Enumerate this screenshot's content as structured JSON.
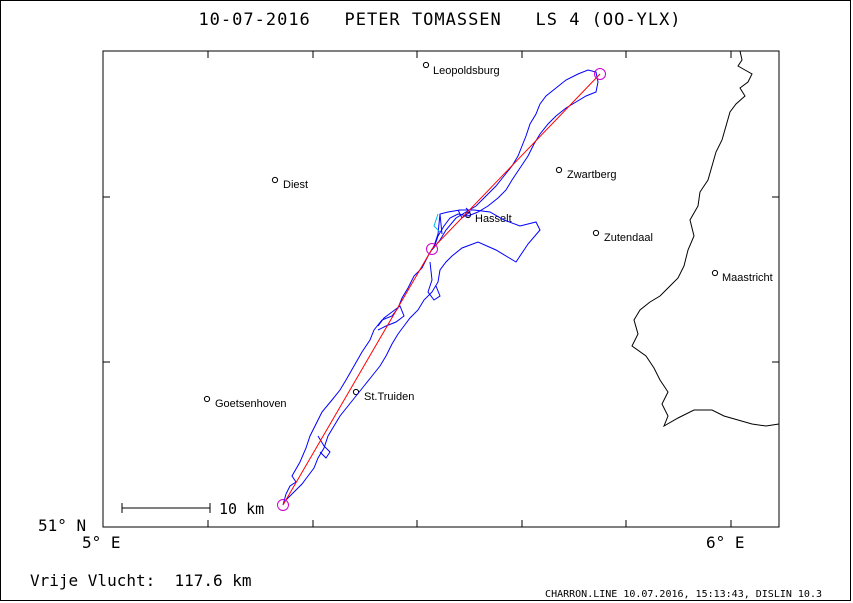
{
  "header": {
    "title": "10-07-2016   PETER TOMASSEN   LS 4 (OO-YLX)"
  },
  "map": {
    "axes": {
      "lat_label": "51° N",
      "lon_left_label": "5° E",
      "lon_right_label": "6° E"
    },
    "scale_bar": {
      "label": "10 km"
    },
    "cities": [
      {
        "name": "Leopoldsburg"
      },
      {
        "name": "Diest"
      },
      {
        "name": "Zwartberg"
      },
      {
        "name": "Hasselt"
      },
      {
        "name": "Zutendaal"
      },
      {
        "name": "Maastricht"
      },
      {
        "name": "St.Truiden"
      },
      {
        "name": "Goetsenhoven"
      }
    ],
    "colors": {
      "track": "#0000ff",
      "task": "#ff0000",
      "turnpoint": "#cc00cc",
      "border": "#000000"
    }
  },
  "footer": {
    "distance": "Vrije Vlucht:  117.6 km",
    "credit": "CHARRON.LINE 10.07.2016, 15:13:43, DISLIN 10.3"
  }
}
